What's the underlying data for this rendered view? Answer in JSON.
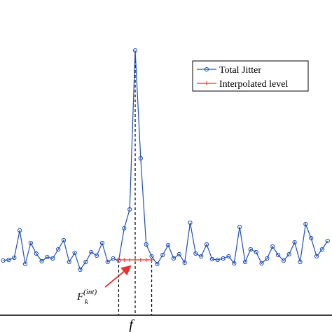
{
  "chart_data": {
    "type": "line",
    "x": [
      0,
      1,
      2,
      3,
      4,
      5,
      6,
      7,
      8,
      9,
      10,
      11,
      12,
      13,
      14,
      15,
      16,
      17,
      18,
      19,
      20,
      21,
      22,
      23,
      24,
      25,
      26,
      27,
      28,
      29,
      30,
      31,
      32,
      33,
      34,
      35,
      36,
      37,
      38,
      39,
      40,
      41,
      42,
      43,
      44,
      45,
      46,
      47,
      48,
      49,
      50,
      51,
      52,
      53,
      54,
      55,
      56,
      57,
      58,
      59
    ],
    "series": [
      {
        "name": "Total Jitter",
        "color": "#1f4fb4",
        "marker": "circle",
        "values": [
          19.5,
          19.75,
          20.5,
          30.25,
          18.25,
          25.75,
          22,
          19.25,
          20.75,
          20.25,
          23.5,
          26.75,
          19,
          22.25,
          16.25,
          19,
          22.5,
          21.25,
          25.75,
          19,
          20.25,
          19.5,
          31,
          37.75,
          94.5,
          56,
          25.25,
          21,
          18.25,
          21.5,
          25,
          20.25,
          21.75,
          18.75,
          33,
          22,
          21,
          25.25,
          20,
          19.75,
          20.25,
          21,
          18.5,
          31.5,
          19,
          23.5,
          22.5,
          18.5,
          20.25,
          24.5,
          21.5,
          19.5,
          21.75,
          26,
          19,
          32.5,
          27.5,
          21,
          23.5,
          26.5
        ]
      },
      {
        "name": "Interpolated level",
        "color": "#e8312f",
        "marker": "plus",
        "x": [
          21,
          22,
          23,
          24,
          25,
          26,
          27
        ],
        "values": [
          19.75,
          19.75,
          19.75,
          19.75,
          19.75,
          19.75,
          19.75
        ]
      }
    ],
    "xlim": [
      -0.59,
      59.8
    ],
    "ylim": [
      0,
      100
    ],
    "x_label": "f",
    "annotation": {
      "base": "F",
      "sub": "k",
      "sup": "(int)"
    },
    "legend": "upper right"
  }
}
